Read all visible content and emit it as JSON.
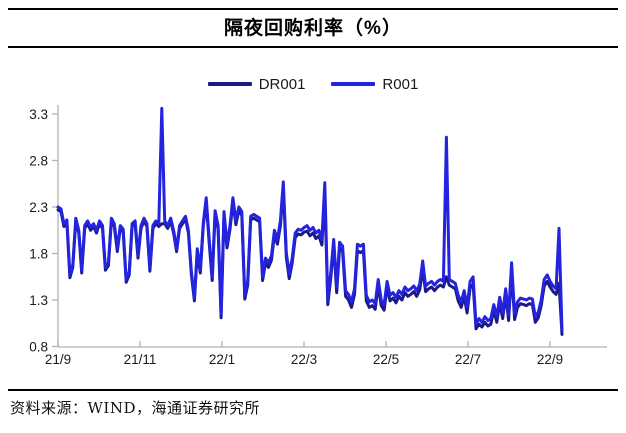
{
  "header": {
    "title": "隔夜回购利率（%）"
  },
  "footer": {
    "source": "资料来源：WIND，海通证券研究所"
  },
  "colors": {
    "dr001": "#1b1b86",
    "r001": "#2323e0",
    "axis": "#b3b3b3",
    "tick_label": "#1a1a1a",
    "rule": "#000000"
  },
  "chart_data": {
    "type": "line",
    "title": "隔夜回购利率（%）",
    "xlabel": "",
    "ylabel": "",
    "x_note": "daily overnight repo rates, Sep 2021 - Sep 2022",
    "x_tick_labels": [
      "21/9",
      "21/11",
      "22/1",
      "22/3",
      "22/5",
      "22/7",
      "22/9"
    ],
    "y_ticks": [
      0.8,
      1.3,
      1.8,
      2.3,
      2.8,
      3.3
    ],
    "ylim": [
      0.8,
      3.45
    ],
    "grid": false,
    "legend_position": "top",
    "series": [
      {
        "name": "DR001",
        "color": "#1b1b86",
        "values": [
          2.27,
          2.25,
          2.09,
          2.13,
          1.54,
          1.65,
          2.15,
          2.02,
          1.59,
          2.07,
          2.12,
          2.05,
          2.09,
          2.02,
          2.12,
          2.07,
          1.62,
          1.67,
          2.15,
          2.09,
          1.82,
          2.07,
          2.03,
          1.49,
          1.57,
          2.09,
          2.12,
          1.75,
          2.07,
          2.15,
          2.09,
          1.61,
          2.07,
          2.12,
          2.09,
          2.12,
          2.12,
          2.07,
          2.15,
          2.02,
          1.82,
          2.07,
          2.12,
          2.17,
          2.02,
          1.57,
          1.29,
          1.82,
          1.59,
          2.1,
          2.36,
          1.91,
          1.51,
          2.22,
          2.06,
          1.11,
          2.21,
          1.86,
          2.06,
          2.35,
          2.11,
          2.26,
          2.21,
          1.31,
          1.46,
          2.16,
          2.18,
          2.16,
          2.14,
          1.51,
          1.7,
          1.65,
          1.73,
          2.0,
          1.9,
          2.1,
          2.5,
          1.76,
          1.53,
          1.7,
          1.97,
          2.01,
          2.0,
          2.03,
          2.04,
          1.99,
          2.02,
          1.96,
          1.99,
          1.89,
          2.45,
          1.25,
          1.54,
          1.89,
          1.38,
          1.86,
          1.82,
          1.34,
          1.3,
          1.22,
          1.36,
          1.83,
          1.81,
          1.83,
          1.29,
          1.22,
          1.24,
          1.2,
          1.46,
          1.24,
          1.19,
          1.44,
          1.29,
          1.32,
          1.27,
          1.34,
          1.3,
          1.38,
          1.34,
          1.36,
          1.39,
          1.34,
          1.41,
          1.63,
          1.39,
          1.42,
          1.44,
          1.4,
          1.44,
          1.46,
          1.44,
          1.55,
          1.46,
          1.44,
          1.42,
          1.29,
          1.22,
          1.34,
          1.16,
          1.43,
          1.47,
          0.99,
          1.04,
          1.01,
          1.06,
          1.02,
          1.04,
          1.19,
          1.06,
          1.27,
          1.1,
          1.36,
          1.08,
          1.6,
          1.09,
          1.22,
          1.26,
          1.25,
          1.24,
          1.26,
          1.25,
          1.06,
          1.11,
          1.24,
          1.45,
          1.5,
          1.44,
          1.39,
          1.36,
          1.48,
          0.93
        ]
      },
      {
        "name": "R001",
        "color": "#2323e0",
        "values": [
          2.3,
          2.28,
          2.12,
          2.16,
          1.57,
          1.68,
          2.18,
          2.05,
          1.62,
          2.1,
          2.15,
          2.08,
          2.12,
          2.05,
          2.15,
          2.1,
          1.65,
          1.7,
          2.18,
          2.12,
          1.85,
          2.1,
          2.06,
          1.52,
          1.6,
          2.12,
          2.15,
          1.78,
          2.1,
          2.18,
          2.12,
          1.64,
          2.1,
          2.15,
          2.12,
          3.36,
          2.15,
          2.1,
          2.18,
          2.05,
          1.85,
          2.1,
          2.15,
          2.2,
          2.05,
          1.6,
          1.32,
          1.85,
          1.62,
          2.13,
          2.4,
          1.95,
          1.55,
          2.26,
          2.1,
          1.15,
          2.25,
          1.9,
          2.1,
          2.4,
          2.15,
          2.3,
          2.25,
          1.35,
          1.5,
          2.2,
          2.22,
          2.2,
          2.18,
          1.55,
          1.75,
          1.7,
          1.78,
          2.05,
          1.95,
          2.15,
          2.57,
          1.81,
          1.58,
          1.75,
          2.02,
          2.06,
          2.05,
          2.08,
          2.1,
          2.05,
          2.08,
          2.02,
          2.05,
          1.95,
          2.56,
          1.3,
          1.6,
          1.95,
          1.44,
          1.92,
          1.88,
          1.4,
          1.36,
          1.28,
          1.42,
          1.9,
          1.88,
          1.9,
          1.35,
          1.28,
          1.3,
          1.26,
          1.52,
          1.3,
          1.25,
          1.5,
          1.35,
          1.38,
          1.33,
          1.4,
          1.36,
          1.44,
          1.4,
          1.42,
          1.45,
          1.4,
          1.47,
          1.72,
          1.45,
          1.48,
          1.5,
          1.46,
          1.5,
          1.52,
          1.5,
          3.05,
          1.52,
          1.5,
          1.48,
          1.35,
          1.28,
          1.4,
          1.22,
          1.5,
          1.55,
          1.04,
          1.1,
          1.06,
          1.12,
          1.08,
          1.1,
          1.25,
          1.12,
          1.33,
          1.16,
          1.42,
          1.14,
          1.7,
          1.15,
          1.28,
          1.32,
          1.31,
          1.3,
          1.32,
          1.31,
          1.12,
          1.17,
          1.3,
          1.52,
          1.57,
          1.5,
          1.45,
          1.42,
          2.07,
          0.98
        ]
      }
    ]
  }
}
